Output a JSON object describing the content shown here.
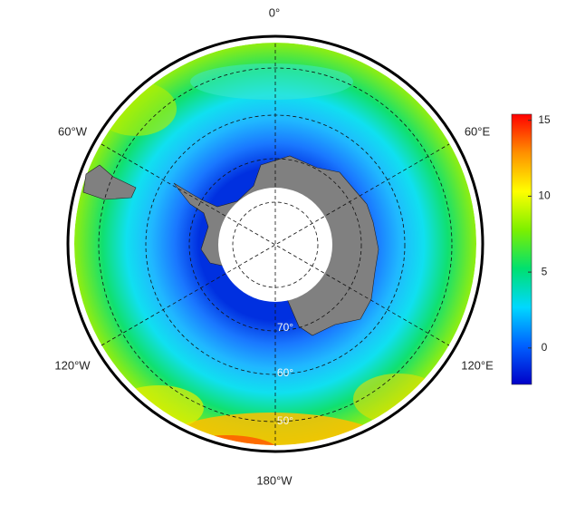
{
  "map": {
    "longitude_labels": [
      "0°",
      "60°E",
      "120°E",
      "180°W",
      "120°W",
      "60°W"
    ],
    "latitude_labels": [
      "70°",
      "60°",
      "50°"
    ],
    "colorbar": {
      "lim": [
        -2.4,
        15.4
      ],
      "ticks": [
        0,
        5,
        10,
        15
      ],
      "colors": [
        "#0000c8",
        "#0060ff",
        "#00d8ff",
        "#00e070",
        "#7cf000",
        "#ffff00",
        "#ff9000",
        "#ff0000"
      ]
    }
  }
}
